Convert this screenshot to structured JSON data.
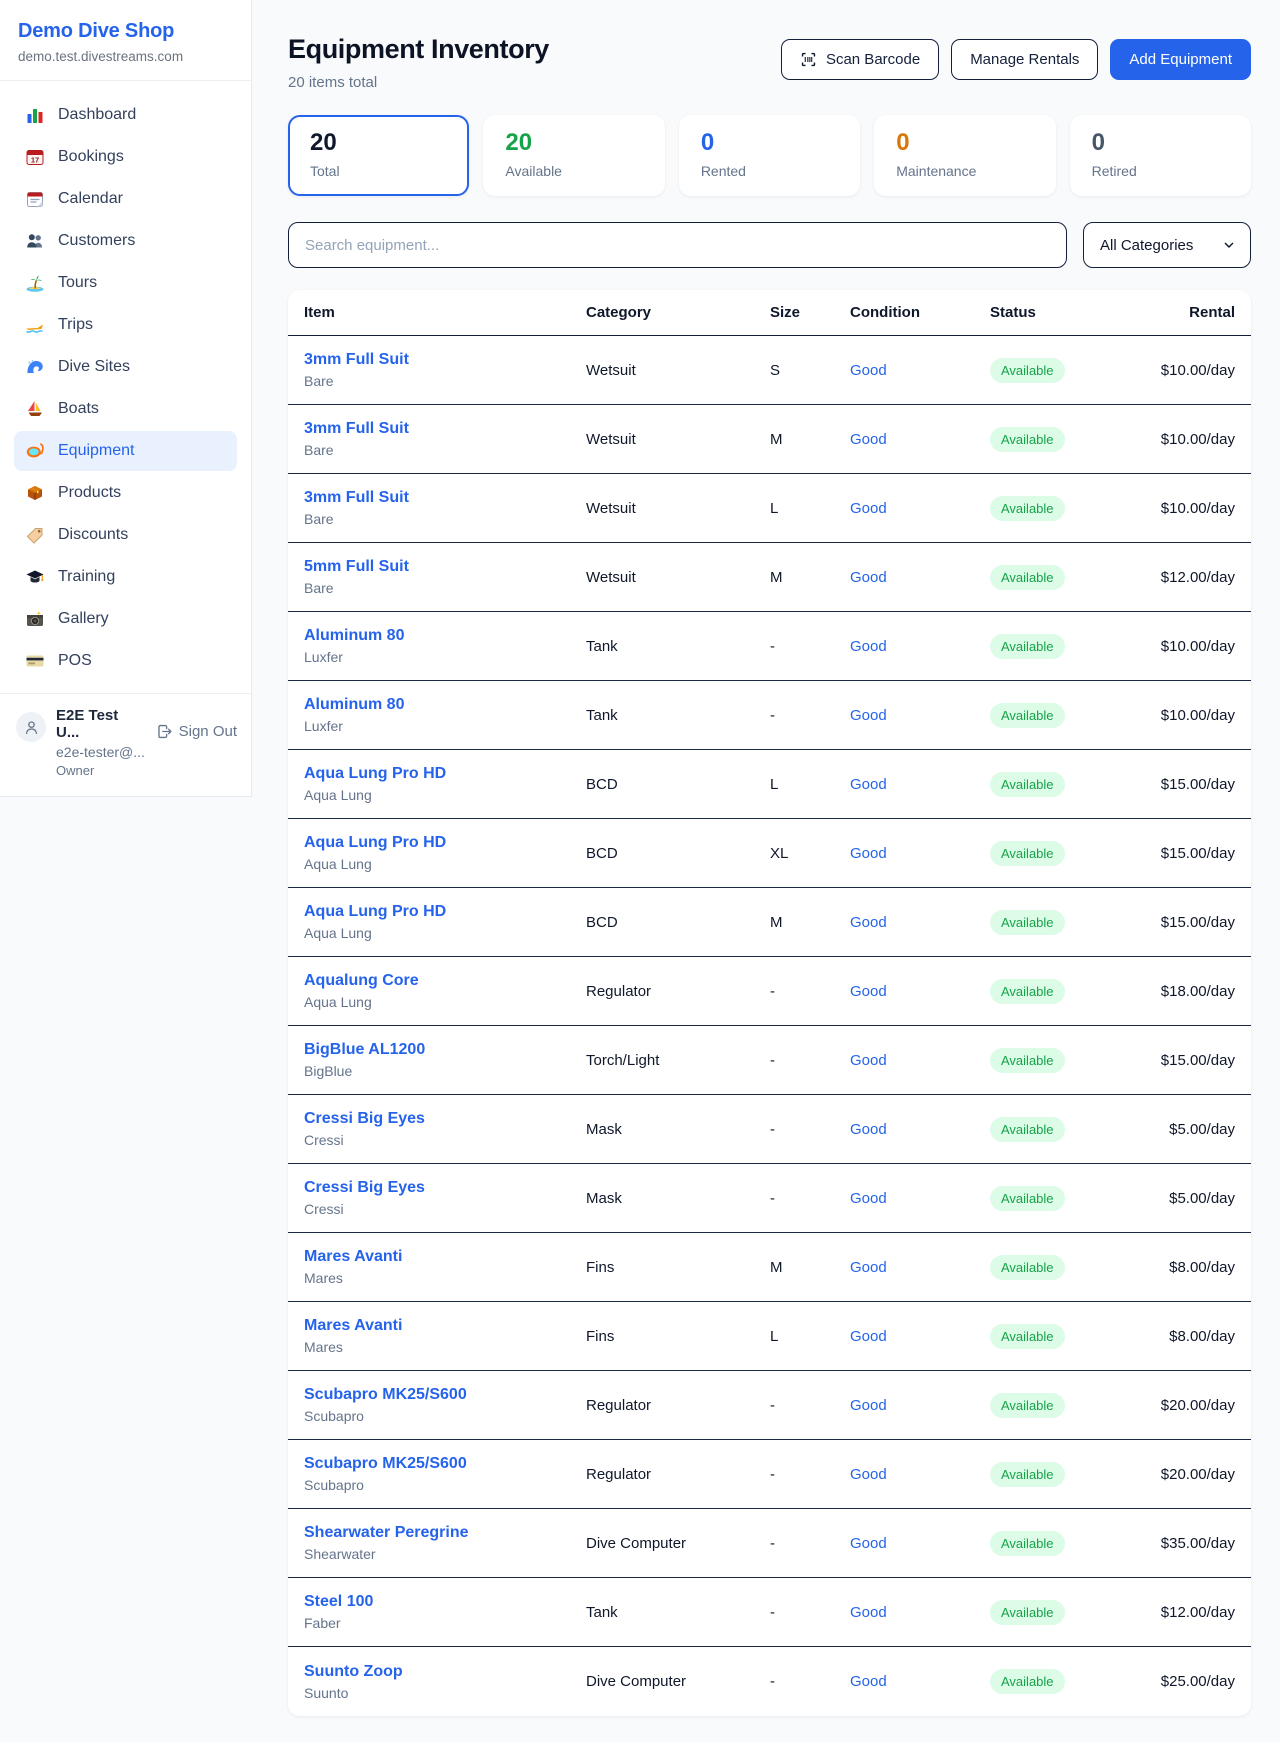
{
  "sidebar": {
    "brand": {
      "name": "Demo Dive Shop",
      "domain": "demo.test.divestreams.com"
    },
    "items": [
      {
        "label": "Dashboard",
        "icon": "bar-chart",
        "active": false
      },
      {
        "label": "Bookings",
        "icon": "bookings-calendar",
        "active": false
      },
      {
        "label": "Calendar",
        "icon": "calendar",
        "active": false
      },
      {
        "label": "Customers",
        "icon": "users",
        "active": false
      },
      {
        "label": "Tours",
        "icon": "island",
        "active": false
      },
      {
        "label": "Trips",
        "icon": "speedboat",
        "active": false
      },
      {
        "label": "Dive Sites",
        "icon": "wave",
        "active": false
      },
      {
        "label": "Boats",
        "icon": "sailboat",
        "active": false
      },
      {
        "label": "Equipment",
        "icon": "diving-mask",
        "active": true
      },
      {
        "label": "Products",
        "icon": "package",
        "active": false
      },
      {
        "label": "Discounts",
        "icon": "tag",
        "active": false
      },
      {
        "label": "Training",
        "icon": "graduation-cap",
        "active": false
      },
      {
        "label": "Gallery",
        "icon": "camera",
        "active": false
      },
      {
        "label": "POS",
        "icon": "credit-card",
        "active": false
      }
    ],
    "user": {
      "name": "E2E Test U...",
      "email": "e2e-tester@...",
      "role": "Owner",
      "sign_out_label": "Sign Out"
    }
  },
  "header": {
    "title": "Equipment Inventory",
    "subtitle": "20 items total",
    "buttons": {
      "scan": "Scan Barcode",
      "manage": "Manage Rentals",
      "add": "Add Equipment"
    }
  },
  "stats": [
    {
      "value": "20",
      "label": "Total",
      "color": "#0f172a",
      "active": true
    },
    {
      "value": "20",
      "label": "Available",
      "color": "#16a34a",
      "active": false
    },
    {
      "value": "0",
      "label": "Rented",
      "color": "#2563eb",
      "active": false
    },
    {
      "value": "0",
      "label": "Maintenance",
      "color": "#d97706",
      "active": false
    },
    {
      "value": "0",
      "label": "Retired",
      "color": "#475569",
      "active": false
    }
  ],
  "filters": {
    "search_placeholder": "Search equipment...",
    "category_selected": "All Categories"
  },
  "table": {
    "columns": [
      "Item",
      "Category",
      "Size",
      "Condition",
      "Status",
      "Rental"
    ],
    "rows": [
      {
        "name": "3mm Full Suit",
        "brand": "Bare",
        "category": "Wetsuit",
        "size": "S",
        "condition": "Good",
        "status": "Available",
        "rental": "$10.00/day"
      },
      {
        "name": "3mm Full Suit",
        "brand": "Bare",
        "category": "Wetsuit",
        "size": "M",
        "condition": "Good",
        "status": "Available",
        "rental": "$10.00/day"
      },
      {
        "name": "3mm Full Suit",
        "brand": "Bare",
        "category": "Wetsuit",
        "size": "L",
        "condition": "Good",
        "status": "Available",
        "rental": "$10.00/day"
      },
      {
        "name": "5mm Full Suit",
        "brand": "Bare",
        "category": "Wetsuit",
        "size": "M",
        "condition": "Good",
        "status": "Available",
        "rental": "$12.00/day"
      },
      {
        "name": "Aluminum 80",
        "brand": "Luxfer",
        "category": "Tank",
        "size": "-",
        "condition": "Good",
        "status": "Available",
        "rental": "$10.00/day"
      },
      {
        "name": "Aluminum 80",
        "brand": "Luxfer",
        "category": "Tank",
        "size": "-",
        "condition": "Good",
        "status": "Available",
        "rental": "$10.00/day"
      },
      {
        "name": "Aqua Lung Pro HD",
        "brand": "Aqua Lung",
        "category": "BCD",
        "size": "L",
        "condition": "Good",
        "status": "Available",
        "rental": "$15.00/day"
      },
      {
        "name": "Aqua Lung Pro HD",
        "brand": "Aqua Lung",
        "category": "BCD",
        "size": "XL",
        "condition": "Good",
        "status": "Available",
        "rental": "$15.00/day"
      },
      {
        "name": "Aqua Lung Pro HD",
        "brand": "Aqua Lung",
        "category": "BCD",
        "size": "M",
        "condition": "Good",
        "status": "Available",
        "rental": "$15.00/day"
      },
      {
        "name": "Aqualung Core",
        "brand": "Aqua Lung",
        "category": "Regulator",
        "size": "-",
        "condition": "Good",
        "status": "Available",
        "rental": "$18.00/day"
      },
      {
        "name": "BigBlue AL1200",
        "brand": "BigBlue",
        "category": "Torch/Light",
        "size": "-",
        "condition": "Good",
        "status": "Available",
        "rental": "$15.00/day"
      },
      {
        "name": "Cressi Big Eyes",
        "brand": "Cressi",
        "category": "Mask",
        "size": "-",
        "condition": "Good",
        "status": "Available",
        "rental": "$5.00/day"
      },
      {
        "name": "Cressi Big Eyes",
        "brand": "Cressi",
        "category": "Mask",
        "size": "-",
        "condition": "Good",
        "status": "Available",
        "rental": "$5.00/day"
      },
      {
        "name": "Mares Avanti",
        "brand": "Mares",
        "category": "Fins",
        "size": "M",
        "condition": "Good",
        "status": "Available",
        "rental": "$8.00/day"
      },
      {
        "name": "Mares Avanti",
        "brand": "Mares",
        "category": "Fins",
        "size": "L",
        "condition": "Good",
        "status": "Available",
        "rental": "$8.00/day"
      },
      {
        "name": "Scubapro MK25/S600",
        "brand": "Scubapro",
        "category": "Regulator",
        "size": "-",
        "condition": "Good",
        "status": "Available",
        "rental": "$20.00/day"
      },
      {
        "name": "Scubapro MK25/S600",
        "brand": "Scubapro",
        "category": "Regulator",
        "size": "-",
        "condition": "Good",
        "status": "Available",
        "rental": "$20.00/day"
      },
      {
        "name": "Shearwater Peregrine",
        "brand": "Shearwater",
        "category": "Dive Computer",
        "size": "-",
        "condition": "Good",
        "status": "Available",
        "rental": "$35.00/day"
      },
      {
        "name": "Steel 100",
        "brand": "Faber",
        "category": "Tank",
        "size": "-",
        "condition": "Good",
        "status": "Available",
        "rental": "$12.00/day"
      },
      {
        "name": "Suunto Zoop",
        "brand": "Suunto",
        "category": "Dive Computer",
        "size": "-",
        "condition": "Good",
        "status": "Available",
        "rental": "$25.00/day"
      }
    ]
  },
  "colors": {
    "accent": "#2563eb",
    "badge_available_bg": "#dcfce7",
    "badge_available_text": "#16a34a",
    "condition_link": "#2563eb"
  }
}
